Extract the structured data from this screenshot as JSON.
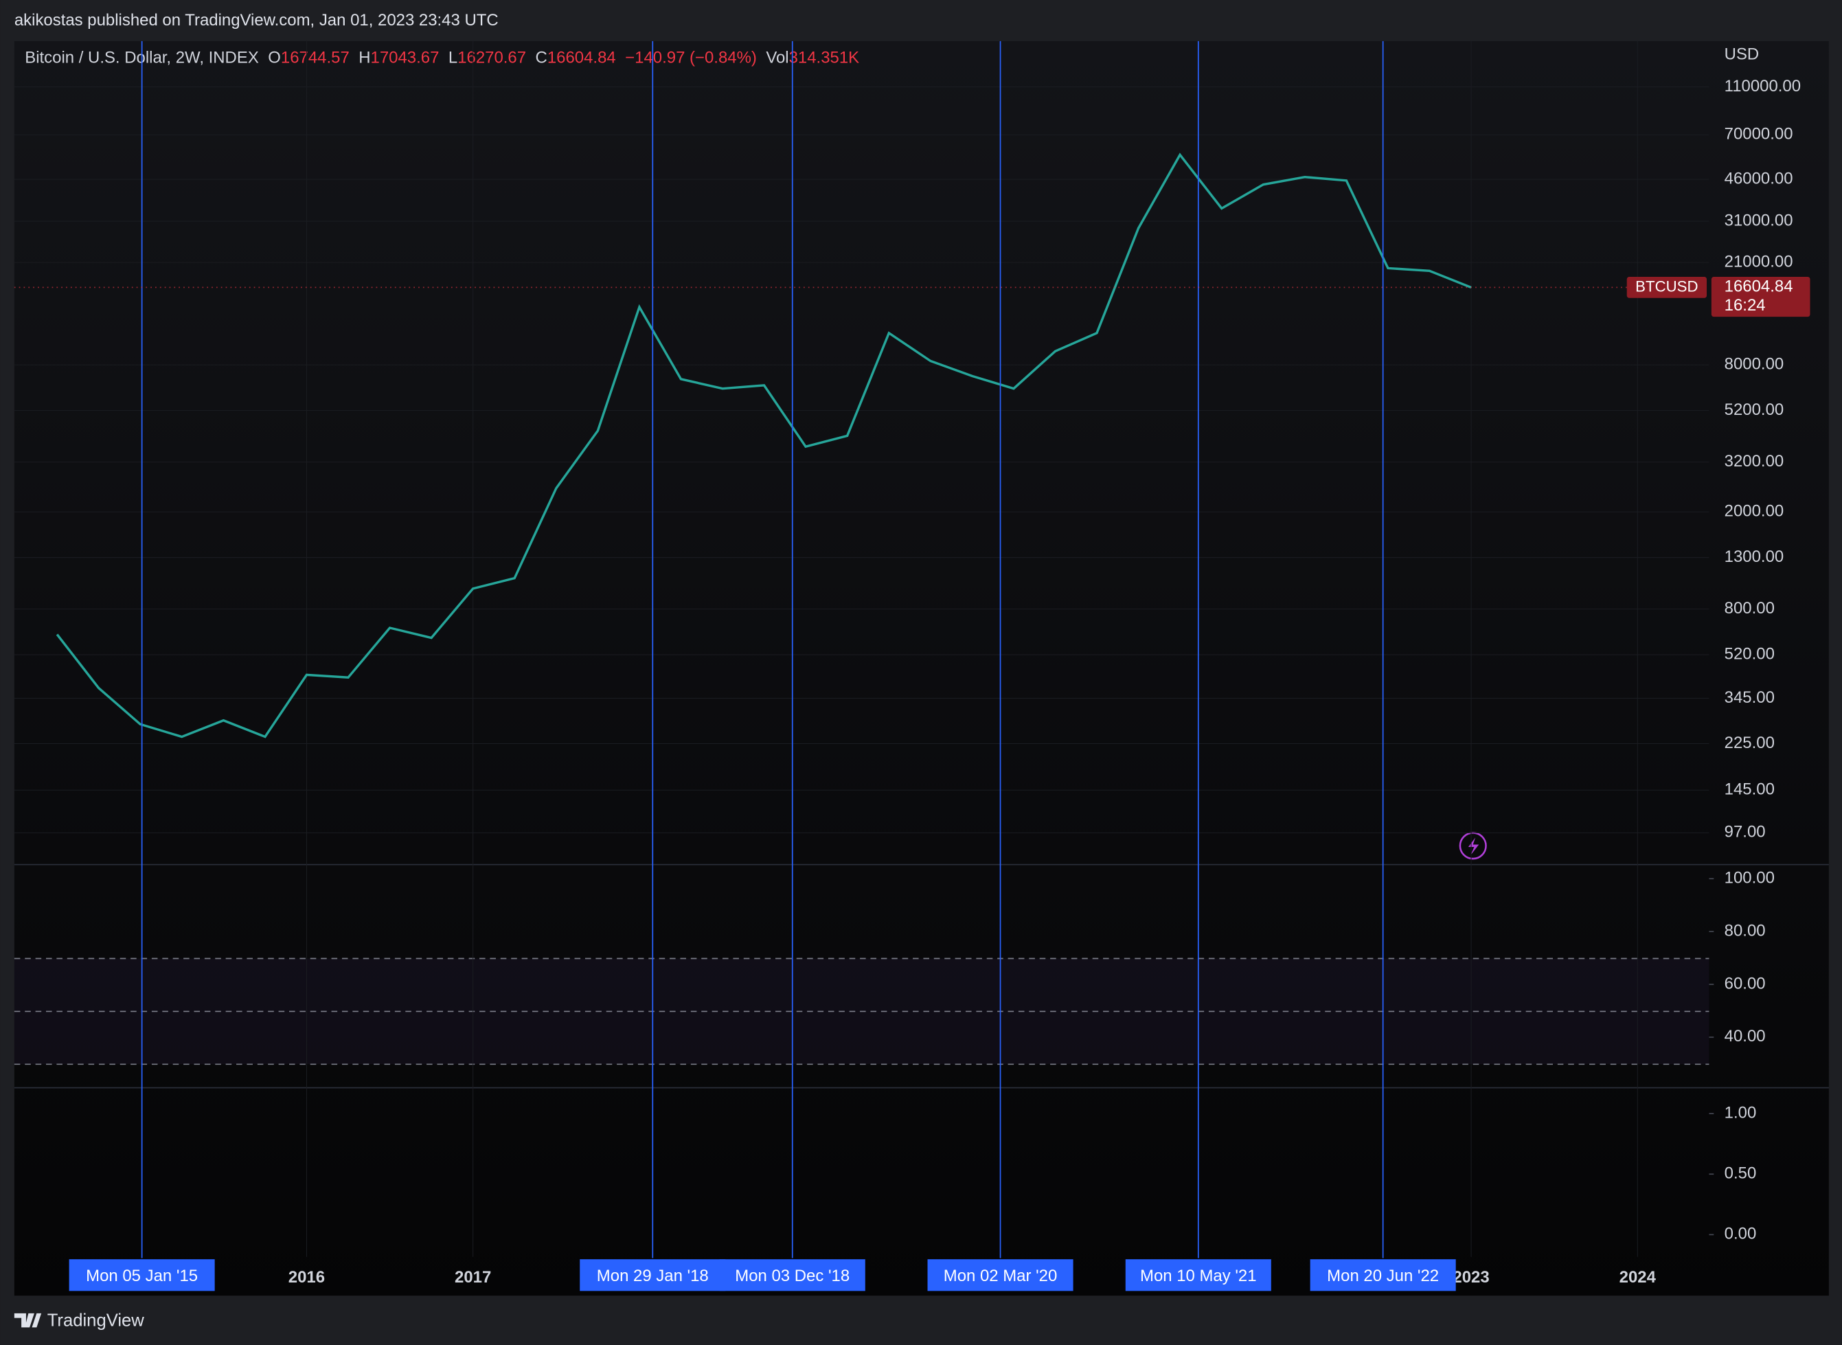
{
  "header": {
    "text": "akikostas published on TradingView.com, Jan 01, 2023 23:43 UTC"
  },
  "legend": {
    "symbol": "Bitcoin / U.S. Dollar, 2W, INDEX",
    "open_key": "O",
    "open": 16744.57,
    "high_key": "H",
    "high": 17043.67,
    "low_key": "L",
    "low": 16270.67,
    "close_key": "C",
    "close": 16604.84,
    "change": "−140.97 (−0.84%)",
    "vol_key": "Vol",
    "vol": "314.351K"
  },
  "price_pane": {
    "type": "line",
    "currency": "USD",
    "log_scale": true,
    "color": "#26a69a",
    "ylim": [
      72.7,
      169400
    ],
    "yticks": [
      {
        "value": 97,
        "label": "97.00"
      },
      {
        "value": 145,
        "label": "145.00"
      },
      {
        "value": 225,
        "label": "225.00"
      },
      {
        "value": 345,
        "label": "345.00"
      },
      {
        "value": 520,
        "label": "520.00"
      },
      {
        "value": 800,
        "label": "800.00"
      },
      {
        "value": 1300,
        "label": "1300.00"
      },
      {
        "value": 2000,
        "label": "2000.00"
      },
      {
        "value": 3200,
        "label": "3200.00"
      },
      {
        "value": 5200,
        "label": "5200.00"
      },
      {
        "value": 8000,
        "label": "8000.00"
      },
      {
        "value": 21000,
        "label": "21000.00"
      },
      {
        "value": 31000,
        "label": "31000.00"
      },
      {
        "value": 46000,
        "label": "46000.00"
      },
      {
        "value": 70000,
        "label": "70000.00"
      },
      {
        "value": 110000,
        "label": "110000.00"
      }
    ],
    "xlim": [
      2014.243,
      2024.43
    ],
    "xticks": [
      2016,
      2017,
      2023,
      2024
    ],
    "x": [
      2014.5,
      2014.75,
      2015.0,
      2015.25,
      2015.5,
      2015.75,
      2016.0,
      2016.25,
      2016.5,
      2016.75,
      2017.0,
      2017.25,
      2017.5,
      2017.75,
      2018.0,
      2018.25,
      2018.5,
      2018.75,
      2019.0,
      2019.25,
      2019.5,
      2019.75,
      2020.0,
      2020.25,
      2020.5,
      2020.75,
      2021.0,
      2021.25,
      2021.5,
      2021.75,
      2022.0,
      2022.25,
      2022.5,
      2022.75,
      2023.0
    ],
    "values": [
      630,
      380,
      270,
      240,
      280,
      240,
      430,
      420,
      670,
      610,
      970,
      1070,
      2500,
      4300,
      13800,
      7000,
      6400,
      6600,
      3700,
      4100,
      10800,
      8300,
      7200,
      6400,
      9100,
      10800,
      29000,
      58000,
      35000,
      43800,
      47000,
      45500,
      19900,
      19400,
      16604.84
    ],
    "symbol_label": "BTCUSD",
    "last_price": 16604.84,
    "countdown": "16:24",
    "markers": [
      {
        "value": 2015.01,
        "label": "Mon 05 Jan '15"
      },
      {
        "value": 2018.08,
        "label": "Mon 29 Jan '18"
      },
      {
        "value": 2018.92,
        "label": "Mon 03 Dec '18"
      },
      {
        "value": 2020.17,
        "label": "Mon 02 Mar '20"
      },
      {
        "value": 2021.36,
        "label": "Mon 10 May '21"
      },
      {
        "value": 2022.47,
        "label": "Mon 20 Jun '22"
      }
    ]
  },
  "rsi_pane": {
    "ylim": [
      21.3,
      104.9
    ],
    "yticks": [
      {
        "value": 40,
        "label": "40.00"
      },
      {
        "value": 60,
        "label": "60.00"
      },
      {
        "value": 80,
        "label": "80.00"
      },
      {
        "value": 100,
        "label": "100.00"
      }
    ]
  },
  "stoch_pane": {
    "ylim": [
      -0.184,
      1.204
    ],
    "yticks": [
      {
        "value": 0,
        "label": "0.00"
      },
      {
        "value": 0.5,
        "label": "0.50"
      },
      {
        "value": 1,
        "label": "1.00"
      }
    ]
  },
  "footer": {
    "brand": "TradingView"
  }
}
